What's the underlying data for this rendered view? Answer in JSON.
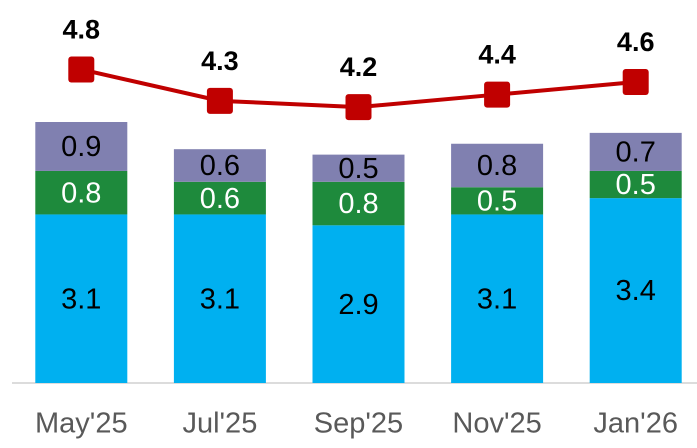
{
  "chart_data": {
    "type": "bar",
    "categories": [
      "May'25",
      "Jul'25",
      "Sep'25",
      "Nov'25",
      "Jan'26"
    ],
    "stacked": true,
    "ylim": [
      0,
      6.4
    ],
    "y2lim": [
      -0.2,
      5.35
    ],
    "series": [
      {
        "color": "#00b0f0",
        "label_color": "#000000",
        "values": [
          3.1,
          3.1,
          2.9,
          3.1,
          3.4
        ]
      },
      {
        "color": "#1e8a3c",
        "label_color": "#ffffff",
        "values": [
          0.8,
          0.6,
          0.8,
          0.5,
          0.5
        ]
      },
      {
        "color": "#8080b0",
        "label_color": "#000000",
        "values": [
          0.9,
          0.6,
          0.5,
          0.8,
          0.7
        ]
      },
      {
        "type": "line",
        "axis": "y2",
        "color": "#c00000",
        "values": [
          4.8,
          4.3,
          4.2,
          4.4,
          4.6
        ]
      }
    ]
  }
}
